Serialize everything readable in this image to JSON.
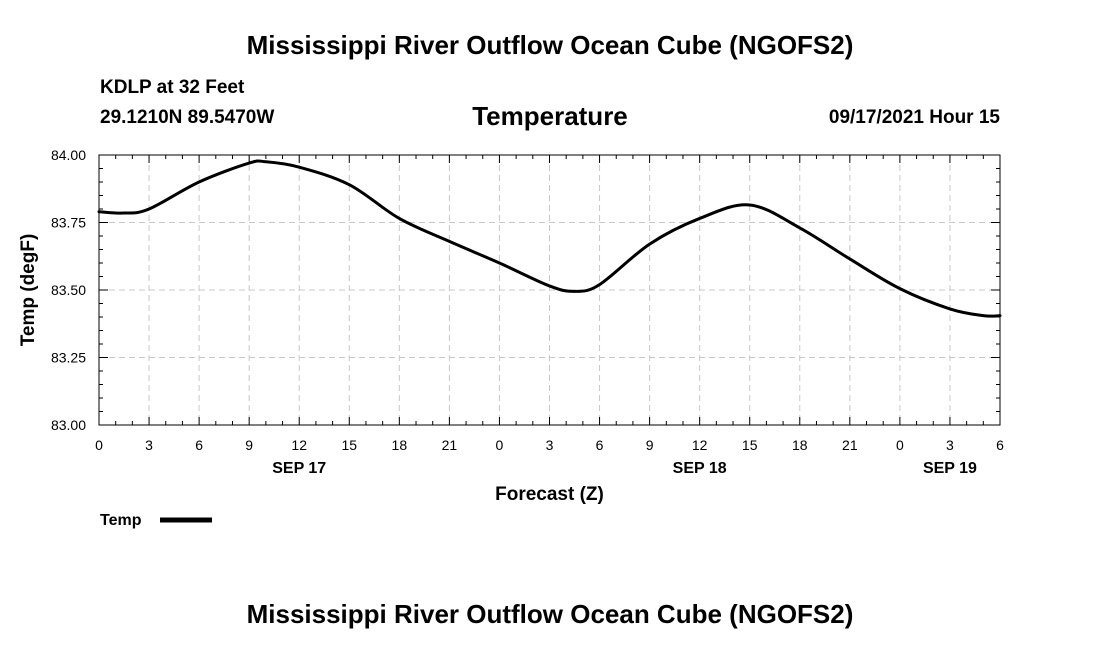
{
  "header": {
    "title": "Mississippi River Outflow Ocean Cube (NGOFS2)",
    "station": "KDLP at 32 Feet",
    "coordinates": "29.1210N  89.5470W",
    "plot_title": "Temperature",
    "timestamp": "09/17/2021 Hour 15"
  },
  "footer": {
    "title": "Mississippi River Outflow Ocean Cube (NGOFS2)"
  },
  "chart_data": {
    "type": "line",
    "title": "Temperature",
    "xlabel": "Forecast (Z)",
    "ylabel": "Temp (degF)",
    "xlim": [
      0,
      54
    ],
    "ylim": [
      83.0,
      84.0
    ],
    "grid": true,
    "y_ticks": [
      "83.00",
      "83.25",
      "83.50",
      "83.75",
      "84.00"
    ],
    "x_ticks": [
      "0",
      "3",
      "6",
      "9",
      "12",
      "15",
      "18",
      "21",
      "0",
      "3",
      "6",
      "9",
      "12",
      "15",
      "18",
      "21",
      "0",
      "3",
      "6"
    ],
    "date_labels": [
      {
        "label": "SEP 17",
        "at": 12
      },
      {
        "label": "SEP 18",
        "at": 36
      },
      {
        "label": "SEP 19",
        "at": 51
      }
    ],
    "legend": {
      "label": "Temp",
      "placement": "below-left"
    },
    "series": [
      {
        "name": "Temp",
        "x": [
          0,
          1.5,
          3,
          6,
          9,
          10,
          12,
          15,
          18,
          21,
          24,
          27,
          28.5,
          30,
          33,
          36,
          39,
          42,
          45,
          48,
          51,
          53,
          54
        ],
        "y": [
          83.79,
          83.785,
          83.8,
          83.9,
          83.97,
          83.975,
          83.955,
          83.89,
          83.765,
          83.68,
          83.6,
          83.515,
          83.495,
          83.52,
          83.67,
          83.765,
          83.815,
          83.73,
          83.615,
          83.505,
          83.43,
          83.405,
          83.405
        ]
      }
    ]
  }
}
